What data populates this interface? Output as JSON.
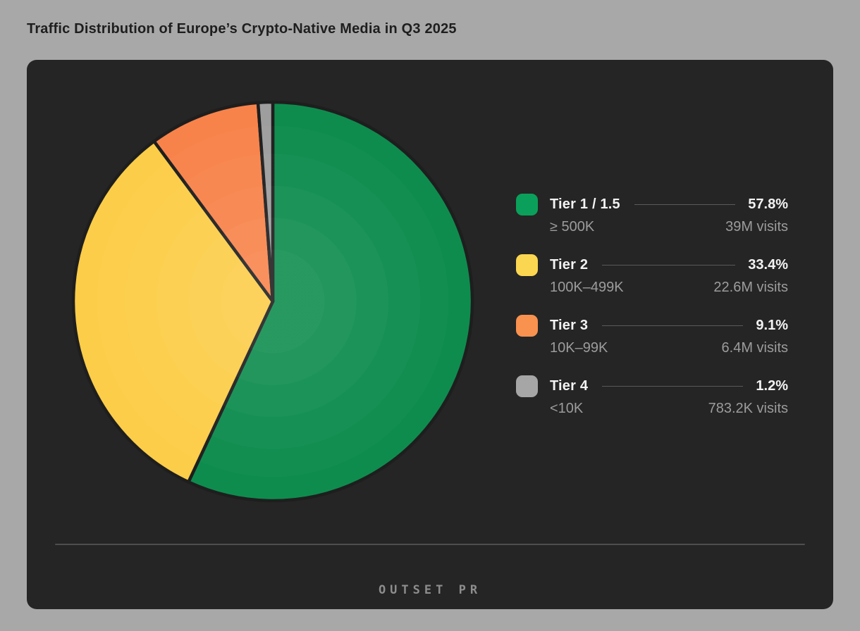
{
  "page": {
    "background_color": "#a8a8a8",
    "card_color": "#252525",
    "brand": "OUTSET PR"
  },
  "chart_data": {
    "type": "pie",
    "title": "Traffic Distribution of Europe’s Crypto-Native Media in Q3 2025",
    "legend_position": "right",
    "start_angle_deg": -90,
    "direction": "clockwise",
    "slice_stroke_color": "#1e1e1e",
    "slices": [
      {
        "label": "Tier 1 / 1.5",
        "range": "≥ 500K",
        "value_pct": 57.8,
        "pct_label": "57.8%",
        "visits": "39M visits",
        "color": "#0aa05b",
        "pie_color": "#0e8c4e"
      },
      {
        "label": "Tier 2",
        "range": "100K–499K",
        "value_pct": 33.4,
        "pct_label": "33.4%",
        "visits": "22.6M visits",
        "color": "#fbd650",
        "pie_color": "#fccd48"
      },
      {
        "label": "Tier 3",
        "range": "10K–99K",
        "value_pct": 9.1,
        "pct_label": "9.1%",
        "visits": "6.4M visits",
        "color": "#f9914f",
        "pie_color": "#f8834a"
      },
      {
        "label": "Tier 4",
        "range": "<10K",
        "value_pct": 1.2,
        "pct_label": "1.2%",
        "visits": "783.2K visits",
        "color": "#a6a6a6",
        "pie_color": "#9e9e9e"
      }
    ]
  }
}
